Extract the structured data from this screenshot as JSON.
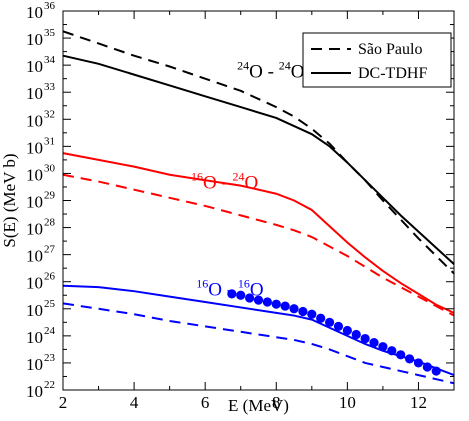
{
  "chart_data": {
    "type": "line",
    "xlabel": "E (MeV)",
    "ylabel": "S(E) (MeV b)",
    "xlim": [
      2,
      13
    ],
    "ylim_log10": [
      22,
      36
    ],
    "y_scale": "log",
    "x_ticks": [
      2,
      4,
      6,
      8,
      10,
      12
    ],
    "y_ticks_exponents": [
      22,
      23,
      24,
      25,
      26,
      27,
      28,
      29,
      30,
      31,
      32,
      33,
      34,
      35,
      36
    ],
    "y_tick_base": "10",
    "grid": false,
    "legend": {
      "position": "top-right",
      "entries": [
        {
          "label": "São Paulo",
          "style": "dashed",
          "color": "#000000"
        },
        {
          "label": "DC-TDHF",
          "style": "solid",
          "color": "#000000"
        }
      ]
    },
    "annotations": [
      {
        "id": "o24o24",
        "mass1": "24",
        "sym1": "O",
        "sep": " - ",
        "mass2": "24",
        "sym2": "O",
        "color": "#000000",
        "at": [
          6.9,
          33.55
        ]
      },
      {
        "id": "o16o24",
        "mass1": "16",
        "sym1": "O",
        "sep": " - ",
        "mass2": "24",
        "sym2": "O",
        "color": "#ff0000",
        "at": [
          5.6,
          29.45
        ]
      },
      {
        "id": "o16o16",
        "mass1": "16",
        "sym1": "O",
        "sep": " - ",
        "mass2": "16",
        "sym2": "O",
        "color": "#0000ff",
        "at": [
          5.75,
          25.5
        ]
      }
    ],
    "series": [
      {
        "name": "São Paulo",
        "system": "24O-24O",
        "color": "#000000",
        "style": "dashed",
        "x": [
          2,
          3,
          4,
          5,
          6,
          7,
          8,
          8.5,
          9,
          9.5,
          10,
          10.5,
          11,
          11.5,
          12,
          12.5,
          13
        ],
        "log10_y": [
          35.25,
          34.8,
          34.35,
          33.95,
          33.5,
          33.05,
          32.45,
          32.1,
          31.65,
          31.1,
          30.4,
          29.75,
          29.0,
          28.3,
          27.6,
          26.95,
          26.3
        ]
      },
      {
        "name": "DC-TDHF",
        "system": "24O-24O",
        "color": "#000000",
        "style": "solid",
        "x": [
          2,
          3,
          4,
          5,
          6,
          7,
          8,
          8.5,
          9,
          9.5,
          10,
          10.5,
          11,
          11.5,
          12,
          12.5,
          13
        ],
        "log10_y": [
          34.35,
          34.05,
          33.65,
          33.25,
          32.85,
          32.45,
          32.05,
          31.75,
          31.45,
          31.0,
          30.4,
          29.75,
          29.1,
          28.45,
          27.85,
          27.25,
          26.65
        ]
      },
      {
        "name": "São Paulo",
        "system": "16O-24O",
        "color": "#ff0000",
        "style": "dashed",
        "x": [
          2,
          3,
          4,
          5,
          6,
          7,
          8,
          8.5,
          9,
          9.5,
          10,
          10.5,
          11,
          11.5,
          12,
          12.5,
          13
        ],
        "log10_y": [
          29.95,
          29.7,
          29.4,
          29.1,
          28.8,
          28.45,
          28.1,
          27.9,
          27.65,
          27.3,
          26.95,
          26.55,
          26.15,
          25.8,
          25.45,
          25.1,
          24.75
        ]
      },
      {
        "name": "DC-TDHF",
        "system": "16O-24O",
        "color": "#ff0000",
        "style": "solid",
        "x": [
          2,
          3,
          4,
          5,
          6,
          7,
          8,
          8.5,
          9,
          9.5,
          10,
          10.5,
          11,
          11.5,
          12,
          12.5,
          13
        ],
        "log10_y": [
          30.75,
          30.5,
          30.25,
          29.95,
          29.75,
          29.55,
          29.25,
          29.0,
          28.65,
          28.05,
          27.45,
          26.9,
          26.4,
          25.95,
          25.55,
          25.15,
          24.85
        ]
      },
      {
        "name": "São Paulo",
        "system": "16O-16O",
        "color": "#0000ff",
        "style": "dashed",
        "x": [
          2,
          3,
          4,
          5,
          6,
          7,
          8,
          8.5,
          9,
          9.5,
          10,
          10.5,
          11,
          11.5,
          12,
          12.5,
          13
        ],
        "log10_y": [
          25.2,
          25.0,
          24.8,
          24.55,
          24.35,
          24.15,
          23.95,
          23.85,
          23.7,
          23.5,
          23.25,
          23.0,
          22.85,
          22.7,
          22.55,
          22.4,
          22.25
        ]
      },
      {
        "name": "DC-TDHF",
        "system": "16O-16O",
        "color": "#0000ff",
        "style": "solid",
        "x": [
          2,
          3,
          4,
          5,
          6,
          7,
          8,
          8.5,
          9,
          9.5,
          10,
          10.5,
          11,
          11.5,
          12,
          12.5,
          13
        ],
        "log10_y": [
          25.85,
          25.8,
          25.65,
          25.45,
          25.25,
          25.05,
          24.85,
          24.75,
          24.6,
          24.3,
          24.0,
          23.7,
          23.45,
          23.25,
          23.05,
          22.8,
          22.55
        ]
      },
      {
        "name": "",
        "system": "16O-16O",
        "color": "#0000ff",
        "style": "markers",
        "x": [
          6.75,
          7.0,
          7.25,
          7.5,
          7.75,
          8.0,
          8.25,
          8.5,
          8.75,
          9.0,
          9.25,
          9.5,
          9.75,
          10.0,
          10.25,
          10.5,
          10.75,
          11.0,
          11.25,
          11.5,
          11.75,
          12.0,
          12.25,
          12.5
        ],
        "log10_y": [
          25.55,
          25.5,
          25.4,
          25.32,
          25.25,
          25.17,
          25.1,
          25.0,
          24.9,
          24.8,
          24.65,
          24.5,
          24.35,
          24.2,
          24.05,
          23.9,
          23.75,
          23.6,
          23.45,
          23.3,
          23.15,
          23.0,
          22.85,
          22.7
        ]
      }
    ]
  }
}
